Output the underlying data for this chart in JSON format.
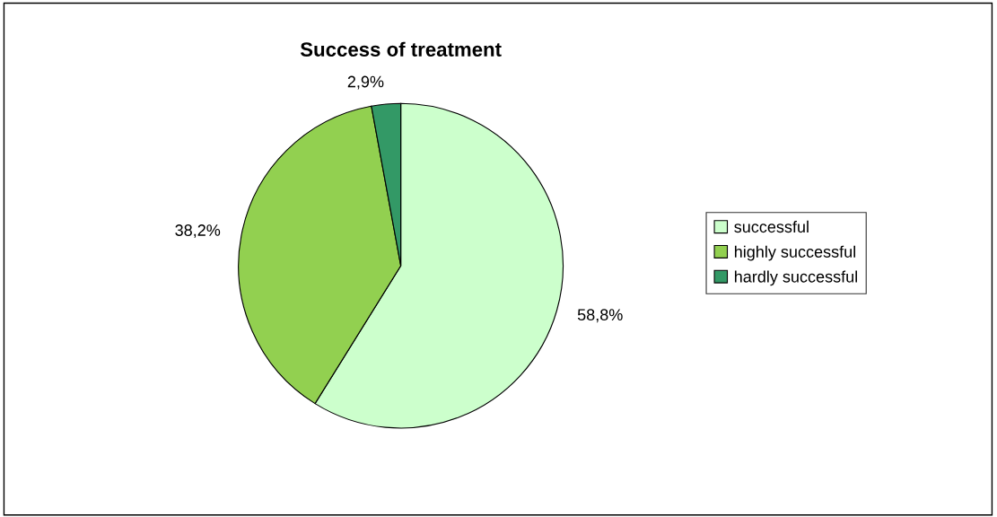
{
  "chart_data": {
    "type": "pie",
    "title": "Success of treatment",
    "categories": [
      "successful",
      "highly successful",
      "hardly successful"
    ],
    "values": [
      58.8,
      38.2,
      2.9
    ],
    "value_labels": [
      "58,8%",
      "38,2%",
      "2,9%"
    ],
    "colors": [
      "#ccffcc",
      "#92d050",
      "#339966"
    ],
    "legend": "right"
  }
}
